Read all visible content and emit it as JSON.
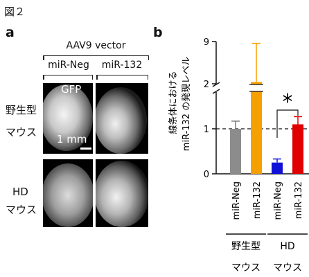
{
  "figure_title": "図２",
  "panel_a": {
    "letter": "a",
    "vector_label": "AAV9 vector",
    "columns": [
      "miR-Neg",
      "miR-132"
    ],
    "rows": [
      {
        "label_line1": "野生型",
        "label_line2": "マウス"
      },
      {
        "label_line1": "HD",
        "label_line2": "マウス"
      }
    ],
    "gfp_label": "GFP",
    "scale_label": "1 mm"
  },
  "panel_b": {
    "letter": "b"
  },
  "chart_data": {
    "type": "bar",
    "ylabel_line1": "線条体における",
    "ylabel_line2": "miR-132 の発現レベル",
    "y_axis": {
      "broken": true,
      "lower_segment": {
        "range": [
          0,
          1.5
        ],
        "ticks": [
          0,
          1
        ]
      },
      "upper_segment": {
        "range": [
          2,
          9
        ],
        "ticks": [
          2,
          9
        ]
      }
    },
    "reference_line": {
      "y": 1,
      "style": "dashed"
    },
    "categories": [
      "miR-Neg",
      "miR-132",
      "miR-Neg",
      "miR-132"
    ],
    "groups": [
      {
        "label_line1": "野生型",
        "label_line2": "マウス",
        "members": [
          0,
          1
        ]
      },
      {
        "label_line1": "HD",
        "label_line2": "マウス",
        "members": [
          2,
          3
        ]
      }
    ],
    "values": [
      1.0,
      2.3,
      0.25,
      1.1
    ],
    "errors_upper": [
      1.17,
      8.7,
      0.33,
      1.27
    ],
    "colors": [
      "#8c8c8c",
      "#f5a000",
      "#1010d8",
      "#e00000"
    ],
    "significance": {
      "between": [
        2,
        3
      ],
      "label": "*"
    }
  }
}
